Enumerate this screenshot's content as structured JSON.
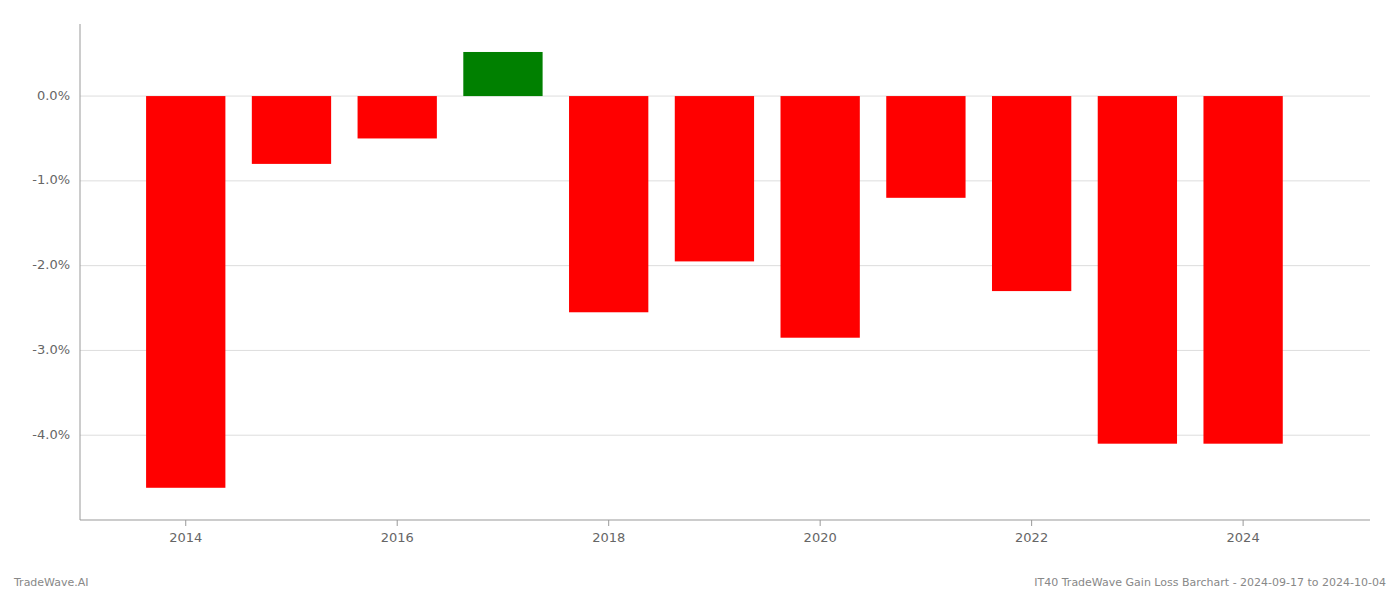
{
  "chart_data": {
    "type": "bar",
    "x": [
      2014,
      2015,
      2016,
      2017,
      2018,
      2019,
      2020,
      2021,
      2022,
      2023,
      2024
    ],
    "values": [
      -4.62,
      -0.8,
      -0.5,
      0.52,
      -2.55,
      -1.95,
      -2.85,
      -1.2,
      -2.3,
      -4.1,
      -4.1
    ],
    "colors": [
      "#ff0000",
      "#ff0000",
      "#ff0000",
      "#008000",
      "#ff0000",
      "#ff0000",
      "#ff0000",
      "#ff0000",
      "#ff0000",
      "#ff0000",
      "#ff0000"
    ],
    "xlim": [
      2013.0,
      2025.2
    ],
    "xticks": [
      2014,
      2016,
      2018,
      2020,
      2022,
      2024
    ],
    "ylim": [
      -5.0,
      0.85
    ],
    "yticks": [
      {
        "value": 0.0,
        "label": "0.0%"
      },
      {
        "value": -1.0,
        "label": "-1.0%"
      },
      {
        "value": -2.0,
        "label": "-2.0%"
      },
      {
        "value": -3.0,
        "label": "-3.0%"
      },
      {
        "value": -4.0,
        "label": "-4.0%"
      }
    ],
    "grid": true,
    "annotations": [
      "TradeWave.AI",
      "IT40 TradeWave Gain Loss Barchart - 2024-09-17 to 2024-10-04"
    ]
  }
}
